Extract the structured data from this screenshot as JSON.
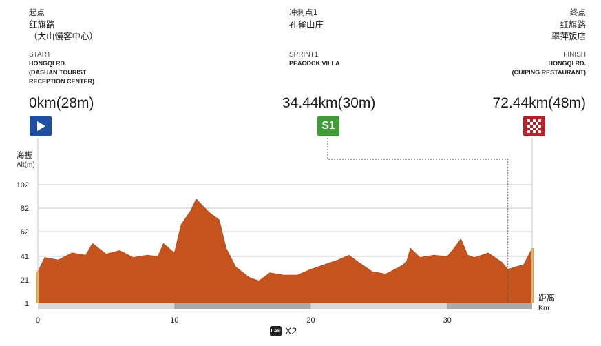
{
  "start": {
    "cn_label": "起点",
    "cn_name_1": "红旗路",
    "cn_name_2": "（大山慢客中心）",
    "en_label": "START",
    "en_name_1": "HONGQI RD.",
    "en_name_2": "(DASHAN TOURIST",
    "en_name_3": "RECEPTION CENTER)",
    "distance": "0km(28m)",
    "color": "#1f4fa0"
  },
  "sprint": {
    "cn_label": "冲刺点1",
    "cn_name_1": "孔雀山庄",
    "en_label": "SPRINT1",
    "en_name_1": "PEACOCK VILLA",
    "distance": "34.44km(30m)",
    "badge": "S1",
    "color": "#3e9b35"
  },
  "finish": {
    "cn_label": "终点",
    "cn_name_1": "红旗路",
    "cn_name_2": "翠萍饭店",
    "en_label": "FINISH",
    "en_name_1": "HONGQI RD.",
    "en_name_2": "(CUIPING RESTAURANT)",
    "distance": "72.44km(48m)",
    "color": "#b0232d"
  },
  "axis": {
    "y_title_cn": "海拔",
    "y_title_en": "Alt(m)",
    "x_title_cn": "距离",
    "x_title_en": "Km"
  },
  "lap": {
    "badge": "LAP",
    "times": "X2"
  },
  "chart_data": {
    "type": "area",
    "title": "",
    "xlabel": "距离 Km",
    "ylabel": "海拔 Alt(m)",
    "xlim": [
      0,
      36.22
    ],
    "ylim": [
      1,
      102
    ],
    "y_ticks": [
      1,
      21,
      41,
      62,
      82,
      102
    ],
    "x_ticks": [
      0,
      10,
      20,
      30
    ],
    "grid": true,
    "fill_color": "#c4531e",
    "accent_color": "#f0a01e",
    "sprint_km": 34.44,
    "series": [
      {
        "values": [
          {
            "x": 0.0,
            "y": 28
          },
          {
            "x": 0.5,
            "y": 40
          },
          {
            "x": 1.5,
            "y": 38
          },
          {
            "x": 2.5,
            "y": 44
          },
          {
            "x": 3.5,
            "y": 42
          },
          {
            "x": 4.0,
            "y": 52
          },
          {
            "x": 5.0,
            "y": 43
          },
          {
            "x": 6.0,
            "y": 46
          },
          {
            "x": 7.0,
            "y": 40
          },
          {
            "x": 8.0,
            "y": 42
          },
          {
            "x": 8.8,
            "y": 41
          },
          {
            "x": 9.2,
            "y": 52
          },
          {
            "x": 10.0,
            "y": 44
          },
          {
            "x": 10.5,
            "y": 68
          },
          {
            "x": 11.2,
            "y": 80
          },
          {
            "x": 11.6,
            "y": 90
          },
          {
            "x": 12.0,
            "y": 85
          },
          {
            "x": 12.6,
            "y": 78
          },
          {
            "x": 13.3,
            "y": 72
          },
          {
            "x": 13.8,
            "y": 48
          },
          {
            "x": 14.5,
            "y": 32
          },
          {
            "x": 15.5,
            "y": 23
          },
          {
            "x": 16.2,
            "y": 20
          },
          {
            "x": 17.0,
            "y": 27
          },
          {
            "x": 18.0,
            "y": 25
          },
          {
            "x": 19.0,
            "y": 25
          },
          {
            "x": 20.0,
            "y": 30
          },
          {
            "x": 21.0,
            "y": 34
          },
          {
            "x": 22.0,
            "y": 38
          },
          {
            "x": 22.8,
            "y": 42
          },
          {
            "x": 23.5,
            "y": 36
          },
          {
            "x": 24.5,
            "y": 28
          },
          {
            "x": 25.5,
            "y": 26
          },
          {
            "x": 26.5,
            "y": 32
          },
          {
            "x": 27.0,
            "y": 36
          },
          {
            "x": 27.3,
            "y": 48
          },
          {
            "x": 28.0,
            "y": 40
          },
          {
            "x": 29.0,
            "y": 42
          },
          {
            "x": 30.0,
            "y": 41
          },
          {
            "x": 30.5,
            "y": 48
          },
          {
            "x": 31.0,
            "y": 56
          },
          {
            "x": 31.5,
            "y": 42
          },
          {
            "x": 32.0,
            "y": 40
          },
          {
            "x": 33.0,
            "y": 44
          },
          {
            "x": 34.0,
            "y": 36
          },
          {
            "x": 34.44,
            "y": 30
          },
          {
            "x": 35.0,
            "y": 32
          },
          {
            "x": 35.6,
            "y": 34
          },
          {
            "x": 36.22,
            "y": 48
          }
        ]
      }
    ]
  }
}
